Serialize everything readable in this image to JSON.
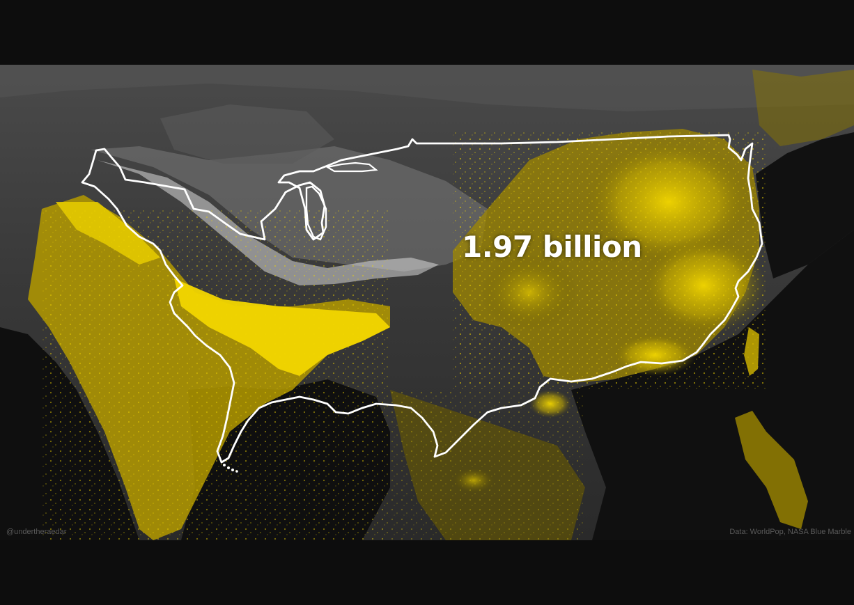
{
  "map": {
    "headline": "1.97 billion",
    "credit_left": "@undertheraedar",
    "credit_right": "Data: WorldPop, NASA Blue Marble",
    "outline_name": "Contiguous United States",
    "regions_overlaid": [
      "India",
      "Bangladesh",
      "China",
      "Southeast Asia"
    ],
    "colors": {
      "background": "#0d0d0d",
      "population": "#f2d600",
      "outline": "#ffffff",
      "terrain": "#3a3a3a",
      "snow": "#cfcfcf"
    }
  }
}
